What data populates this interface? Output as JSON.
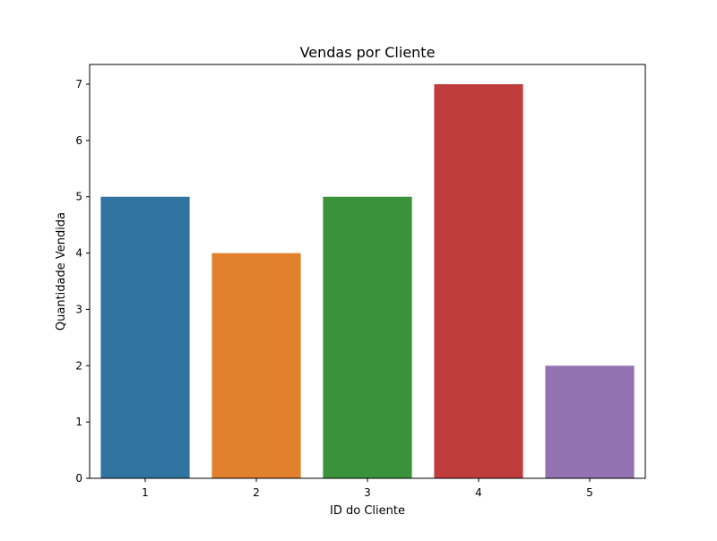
{
  "chart_data": {
    "type": "bar",
    "title": "Vendas por Cliente",
    "xlabel": "ID do Cliente",
    "ylabel": "Quantidade Vendida",
    "categories": [
      "1",
      "2",
      "3",
      "4",
      "5"
    ],
    "values": [
      5,
      4,
      5,
      7,
      2
    ],
    "colors": [
      "#3274a1",
      "#e1812c",
      "#3a923a",
      "#c03d3e",
      "#9372b2"
    ],
    "yticks": [
      0,
      1,
      2,
      3,
      4,
      5,
      6,
      7
    ],
    "ylim": [
      0,
      7.35
    ],
    "grid": false,
    "legend": false
  }
}
